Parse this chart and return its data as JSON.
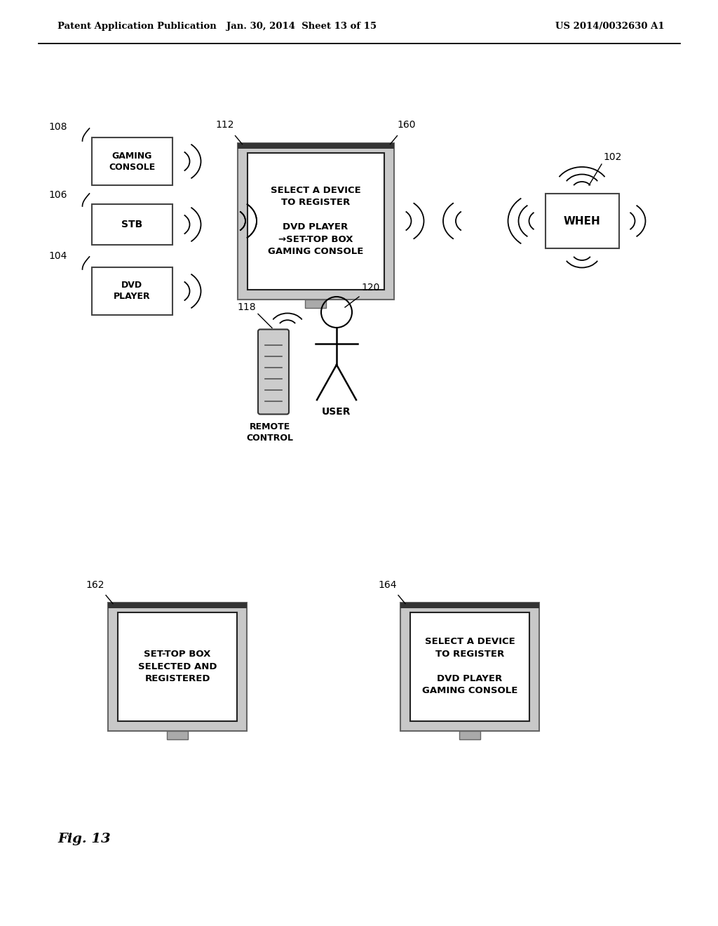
{
  "bg_color": "#ffffff",
  "header_left": "Patent Application Publication",
  "header_mid": "Jan. 30, 2014  Sheet 13 of 15",
  "header_right": "US 2014/0032630 A1",
  "fig_label": "Fig. 13"
}
